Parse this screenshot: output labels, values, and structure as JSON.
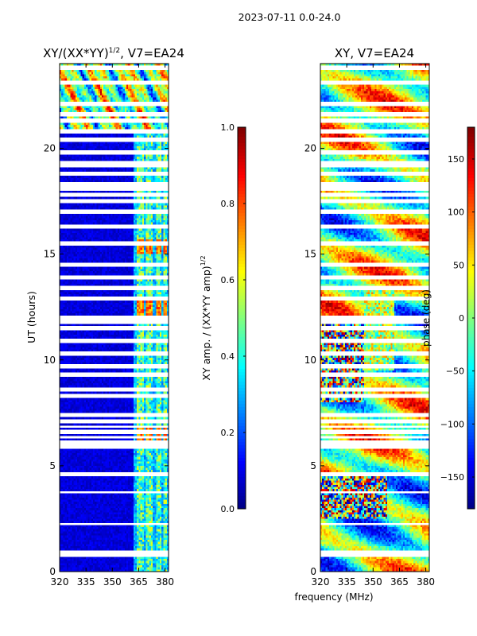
{
  "page_title": "2023-07-11 0.0-24.0",
  "shared_xlabel": "frequency (MHz)",
  "colors": {
    "jet": [
      "#00007f",
      "#0000ff",
      "#007fff",
      "#00ffff",
      "#7fff7f",
      "#ffff00",
      "#ff7f00",
      "#ff0000",
      "#7f0000"
    ],
    "gap": "#ffffff"
  },
  "chart_data": [
    {
      "type": "heatmap",
      "title": "XY/(XX*YY)^(1/2), V7=EA24",
      "title_main": "XY/(XX*YY)",
      "title_exp": "1/2",
      "title_tail": ", V7=EA24",
      "xlabel": "",
      "ylabel": "UT (hours)",
      "xlim": [
        320,
        382
      ],
      "ylim": [
        0,
        24
      ],
      "xticks": [
        "320",
        "335",
        "350",
        "365",
        "380"
      ],
      "yticks": [
        "0",
        "5",
        "10",
        "15",
        "20"
      ],
      "rows": 240,
      "cols": 62,
      "value_range": [
        0,
        1
      ],
      "colorbar": {
        "label": "XY amp. / (XX*YY amp)^(1/2)",
        "label_main": "XY amp. / (XX*YY amp)",
        "label_exp": "1/2",
        "range": [
          0.0,
          1.0
        ],
        "ticks": [
          "0.0",
          "0.2",
          "0.4",
          "0.6",
          "0.8",
          "1.0"
        ]
      }
    },
    {
      "type": "heatmap",
      "title": "XY, V7=EA24",
      "xlabel": "frequency (MHz)",
      "ylabel": "",
      "xlim": [
        320,
        382
      ],
      "ylim": [
        0,
        24
      ],
      "xticks": [
        "320",
        "335",
        "350",
        "365",
        "380"
      ],
      "yticks": [
        "0",
        "5",
        "10",
        "15",
        "20"
      ],
      "rows": 240,
      "cols": 62,
      "value_range": [
        -180,
        180
      ],
      "colorbar": {
        "label": "phase (deg)",
        "range": [
          -180,
          180
        ],
        "ticks": [
          "−150",
          "−100",
          "−50",
          "0",
          "50",
          "100",
          "150"
        ]
      }
    }
  ],
  "flagged_time_bands_hours": [
    [
      0.75,
      0.95
    ],
    [
      1.45,
      1.55
    ],
    [
      1.95,
      2.05
    ],
    [
      2.25,
      2.35
    ],
    [
      2.95,
      3.05
    ],
    [
      3.45,
      3.55
    ],
    [
      3.75,
      3.85
    ],
    [
      4.55,
      4.65
    ],
    [
      5.85,
      5.95
    ],
    [
      6.05,
      6.15
    ],
    [
      6.3,
      6.4
    ],
    [
      6.55,
      6.65
    ],
    [
      6.8,
      6.9
    ],
    [
      7.05,
      7.15
    ],
    [
      7.35,
      7.45
    ],
    [
      8.25,
      8.35
    ],
    [
      8.55,
      8.65
    ],
    [
      9.25,
      9.35
    ],
    [
      9.65,
      9.75
    ],
    [
      10.25,
      10.35
    ],
    [
      10.85,
      10.95
    ],
    [
      11.45,
      11.55
    ],
    [
      11.75,
      11.85
    ],
    [
      11.95,
      12.05
    ],
    [
      12.85,
      12.95
    ],
    [
      13.35,
      13.45
    ],
    [
      13.85,
      13.95
    ],
    [
      14.45,
      14.6
    ],
    [
      15.45,
      15.55
    ],
    [
      16.25,
      16.35
    ],
    [
      16.95,
      17.05
    ],
    [
      17.45,
      17.55
    ],
    [
      17.75,
      17.85
    ],
    [
      18.05,
      18.15
    ],
    [
      18.25,
      18.35
    ],
    [
      18.75,
      18.85
    ],
    [
      19.15,
      19.35
    ],
    [
      19.75,
      19.85
    ],
    [
      20.35,
      20.45
    ],
    [
      20.75,
      20.85
    ],
    [
      21.25,
      21.35
    ],
    [
      21.55,
      21.65
    ],
    [
      22.05,
      22.15
    ],
    [
      23.05,
      23.15
    ],
    [
      23.75,
      23.85
    ]
  ]
}
